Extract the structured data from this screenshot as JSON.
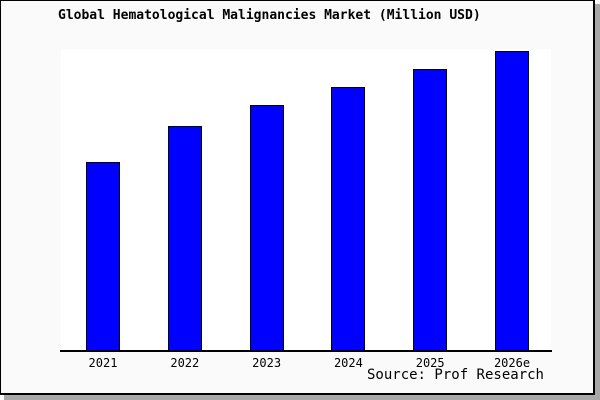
{
  "title": "Global Hematological Malignancies Market (Million USD)",
  "source": "Source: Prof Research",
  "colors": {
    "canvas_background": "#fafafa",
    "plot_background": "#ffffff",
    "bar_fill": "#0000ff",
    "bar_border": "#000000",
    "axis": "#000000",
    "frame_border": "#000000",
    "shadow": "#a8a8a8",
    "text": "#000000"
  },
  "chart_data": {
    "type": "bar",
    "categories": [
      "2021",
      "2022",
      "2023",
      "2024",
      "2025",
      "2026e"
    ],
    "values": [
      63,
      75,
      82,
      88,
      94,
      100
    ],
    "value_units": "relative height (no y-axis scale shown; 2026e = 100)",
    "title": "Global Hematological Malignancies Market (Million USD)",
    "xlabel": "",
    "ylabel": "",
    "ylim": [
      0,
      100
    ],
    "grid": false,
    "legend": false,
    "y_axis_visible": false,
    "annotations": [
      "Source: Prof Research"
    ]
  }
}
